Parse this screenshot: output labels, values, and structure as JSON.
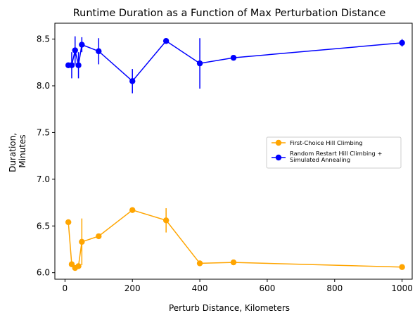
{
  "chart_data": {
    "type": "line",
    "title": "Runtime Duration as a Function of Max Perturbation Distance",
    "xlabel": "Perturb Distance, Kilometers",
    "ylabel_lines": [
      "Duration,",
      "Minutes"
    ],
    "xlim": [
      -30,
      1030
    ],
    "ylim": [
      5.93,
      8.67
    ],
    "xticks": [
      0,
      200,
      400,
      600,
      800,
      1000
    ],
    "yticks": [
      6.0,
      6.5,
      7.0,
      7.5,
      8.0,
      8.5
    ],
    "ytick_labels": [
      "6.0",
      "6.5",
      "7.0",
      "7.5",
      "8.0",
      "8.5"
    ],
    "grid": false,
    "legend_position": "right",
    "series": [
      {
        "name": "First-Choice Hill Climbing",
        "color": "#ffa500",
        "x": [
          10,
          20,
          30,
          40,
          50,
          100,
          200,
          300,
          400,
          500,
          1000
        ],
        "y": [
          6.54,
          6.09,
          6.05,
          6.07,
          6.33,
          6.39,
          6.67,
          6.56,
          6.1,
          6.11,
          6.06
        ],
        "err": [
          0,
          0,
          0,
          0,
          0.25,
          0,
          0,
          0.13,
          0,
          0,
          0
        ]
      },
      {
        "name": "Random Restart Hill Climbing + Simulated Annealing",
        "legend_lines": [
          "Random Restart Hill Climbing +",
          "Simulated Annealing"
        ],
        "color": "#0000ff",
        "x": [
          10,
          20,
          30,
          40,
          50,
          100,
          200,
          300,
          400,
          500,
          1000
        ],
        "y": [
          8.22,
          8.22,
          8.38,
          8.22,
          8.44,
          8.37,
          8.05,
          8.48,
          8.24,
          8.3,
          8.46
        ],
        "err": [
          0,
          0.14,
          0.15,
          0.14,
          0.08,
          0.14,
          0.13,
          0.02,
          0.27,
          0,
          0.04
        ]
      }
    ]
  }
}
